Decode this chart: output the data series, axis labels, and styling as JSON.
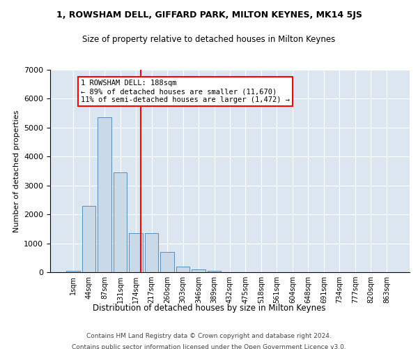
{
  "title1": "1, ROWSHAM DELL, GIFFARD PARK, MILTON KEYNES, MK14 5JS",
  "title2": "Size of property relative to detached houses in Milton Keynes",
  "xlabel": "Distribution of detached houses by size in Milton Keynes",
  "ylabel": "Number of detached properties",
  "footer1": "Contains HM Land Registry data © Crown copyright and database right 2024.",
  "footer2": "Contains public sector information licensed under the Open Government Licence v3.0.",
  "bar_labels": [
    "1sqm",
    "44sqm",
    "87sqm",
    "131sqm",
    "174sqm",
    "217sqm",
    "260sqm",
    "303sqm",
    "346sqm",
    "389sqm",
    "432sqm",
    "475sqm",
    "518sqm",
    "561sqm",
    "604sqm",
    "648sqm",
    "691sqm",
    "734sqm",
    "777sqm",
    "820sqm",
    "863sqm"
  ],
  "bar_values": [
    50,
    2300,
    5350,
    3450,
    1350,
    1350,
    700,
    200,
    100,
    50,
    10,
    0,
    0,
    0,
    0,
    0,
    0,
    0,
    0,
    0,
    0
  ],
  "bar_color": "#c9d9e8",
  "bar_edge_color": "#5a8db5",
  "bg_color": "#dce6f0",
  "grid_color": "white",
  "annotation_text": "1 ROWSHAM DELL: 188sqm\n← 89% of detached houses are smaller (11,670)\n11% of semi-detached houses are larger (1,472) →",
  "annotation_box_color": "white",
  "annotation_border_color": "red",
  "ylim": [
    0,
    7000
  ],
  "yticks": [
    0,
    1000,
    2000,
    3000,
    4000,
    5000,
    6000,
    7000
  ],
  "property_sqm": 188,
  "bin_starts": [
    1,
    44,
    87,
    131,
    174,
    217,
    260,
    303,
    346,
    389,
    432,
    475,
    518,
    561,
    604,
    648,
    691,
    734,
    777,
    820,
    863
  ]
}
